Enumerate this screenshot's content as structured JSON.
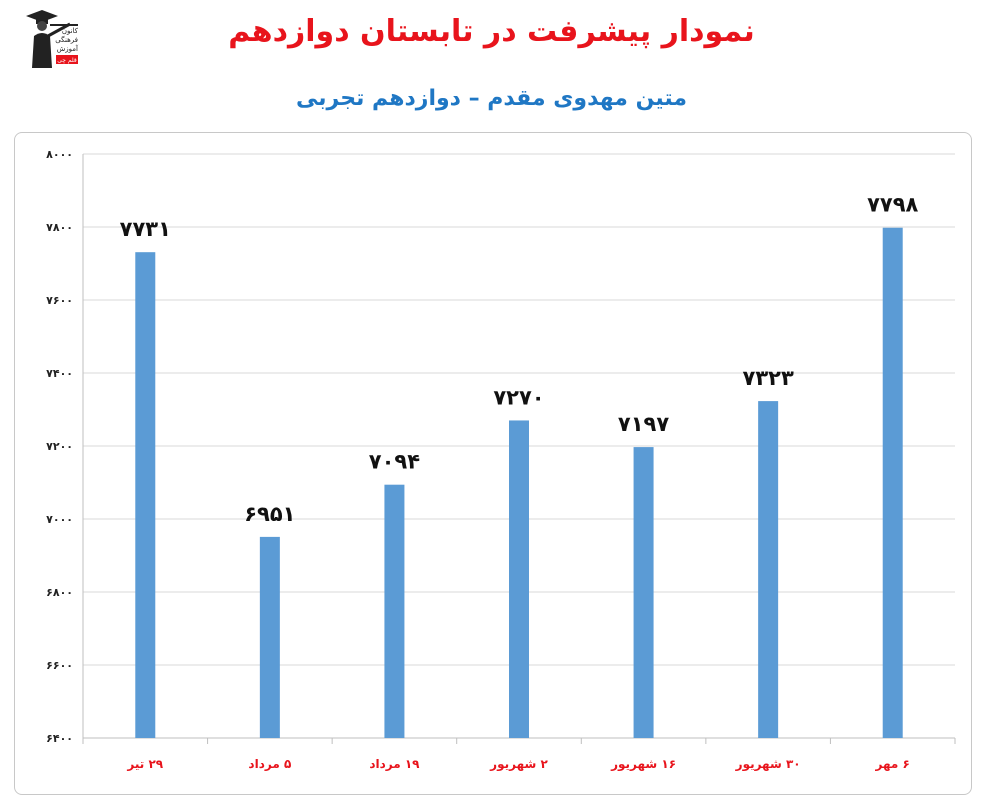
{
  "logo": {
    "name": "graduate-logo",
    "lines": [
      "کانون",
      "فرهنگی",
      "آموزش"
    ],
    "badge": "قلم چی"
  },
  "header": {
    "title": "نمودار پیشرفت در تابستان دوازدهم",
    "subtitle": "متین مهدوی مقدم – دوازدهم تجربی"
  },
  "chart_data": {
    "type": "bar",
    "categories": [
      "۲۹ تیر",
      "۵ مرداد",
      "۱۹ مرداد",
      "۲ شهریور",
      "۱۶ شهریور",
      "۳۰ شهریور",
      "۶ مهر"
    ],
    "values": [
      7731,
      6951,
      7094,
      7270,
      7197,
      7323,
      7798
    ],
    "value_labels": [
      "۷۷۳۱",
      "۶۹۵۱",
      "۷۰۹۴",
      "۷۲۷۰",
      "۷۱۹۷",
      "۷۳۲۳",
      "۷۷۹۸"
    ],
    "yticks": [
      6400,
      6600,
      6800,
      7000,
      7200,
      7400,
      7600,
      7800,
      8000
    ],
    "ytick_labels": [
      "۶۴۰۰",
      "۶۶۰۰",
      "۶۸۰۰",
      "۷۰۰۰",
      "۷۲۰۰",
      "۷۴۰۰",
      "۷۶۰۰",
      "۷۸۰۰",
      "۸۰۰۰"
    ],
    "ylim": [
      6400,
      8000
    ],
    "grid": true,
    "bar_color": "#5b9bd5",
    "tick_label_color": "#e8141c",
    "title": "",
    "xlabel": "",
    "ylabel": ""
  }
}
